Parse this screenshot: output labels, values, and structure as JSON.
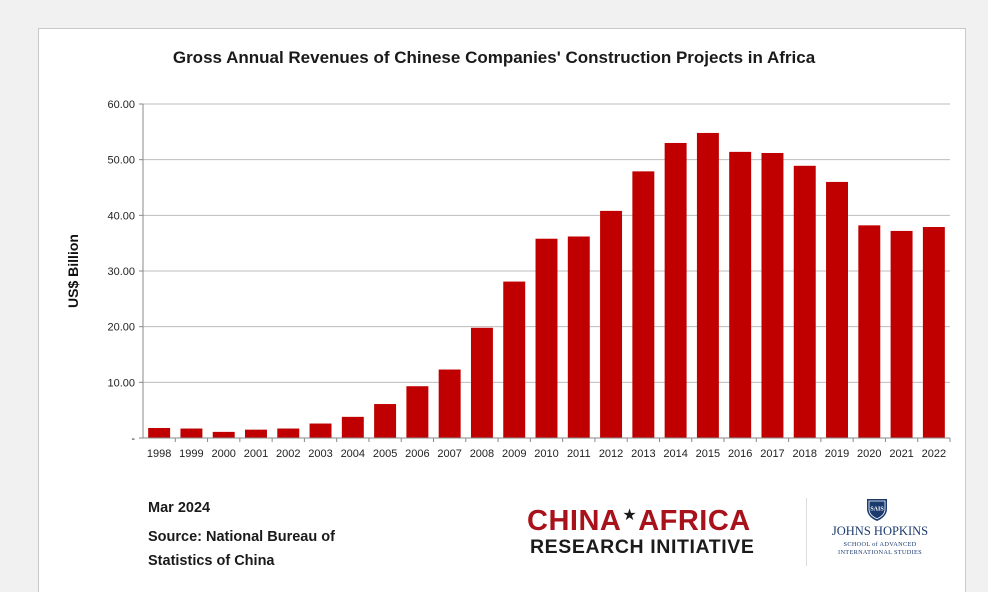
{
  "chart_data": {
    "type": "bar",
    "title": "Gross Annual Revenues of Chinese Companies' Construction Projects in Africa",
    "ylabel": "US$ Billion",
    "xlabel": "",
    "ylim": [
      0,
      60
    ],
    "yticks": [
      "-",
      "10.00",
      "20.00",
      "30.00",
      "40.00",
      "50.00",
      "60.00"
    ],
    "grid": true,
    "bar_color": "#c00000",
    "categories": [
      "1998",
      "1999",
      "2000",
      "2001",
      "2002",
      "2003",
      "2004",
      "2005",
      "2006",
      "2007",
      "2008",
      "2009",
      "2010",
      "2011",
      "2012",
      "2013",
      "2014",
      "2015",
      "2016",
      "2017",
      "2018",
      "2019",
      "2020",
      "2021",
      "2022"
    ],
    "values": [
      1.8,
      1.7,
      1.1,
      1.5,
      1.7,
      2.6,
      3.8,
      6.1,
      9.3,
      12.3,
      19.8,
      28.1,
      35.8,
      36.2,
      40.8,
      47.9,
      53.0,
      54.8,
      51.4,
      51.2,
      48.9,
      46.0,
      38.2,
      37.2,
      37.9
    ]
  },
  "footer": {
    "date": "Mar 2024",
    "source": "Source: National Bureau of Statistics of China"
  },
  "logos": {
    "car": {
      "line1_left": "CHINA",
      "line1_star": "★",
      "line1_right": "AFRICA",
      "line2": "RESEARCH INITIATIVE",
      "color": "#a8121b"
    },
    "jhu": {
      "crest": "SAIS",
      "name": "JOHNS HOPKINS",
      "sub1": "SCHOOL of ADVANCED",
      "sub2": "INTERNATIONAL STUDIES",
      "color": "#1b3b6f"
    }
  }
}
